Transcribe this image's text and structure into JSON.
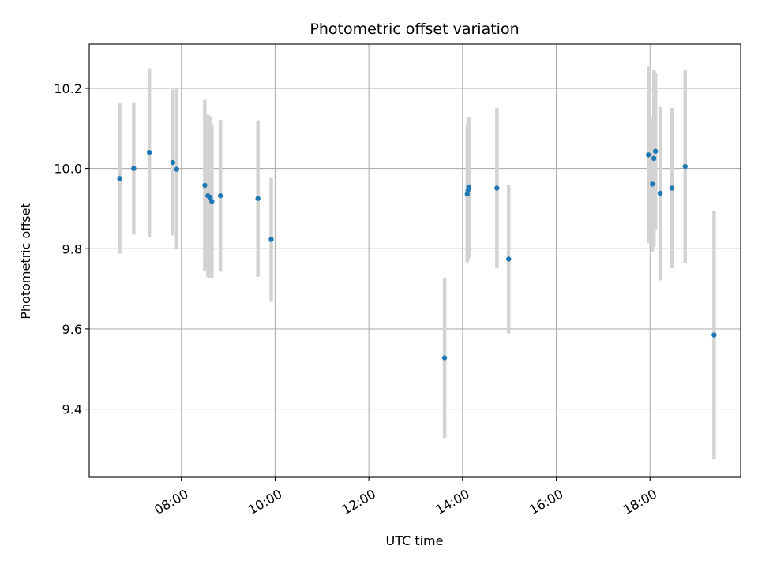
{
  "chart_data": {
    "type": "scatter",
    "title": "Photometric offset variation",
    "xlabel": "UTC time",
    "ylabel": "Photometric offset",
    "xlim": [
      "06:02",
      "19:56"
    ],
    "ylim": [
      9.23,
      10.31
    ],
    "x_ticks": [
      "08:00",
      "10:00",
      "12:00",
      "14:00",
      "16:00",
      "18:00"
    ],
    "y_ticks": [
      9.4,
      9.6,
      9.8,
      10.0,
      10.2
    ],
    "y_tick_labels": [
      "9.4",
      "9.6",
      "9.8",
      "10.0",
      "10.2"
    ],
    "grid": true,
    "colors": {
      "marker": "#1f77b4",
      "errorbar": "#d3d3d3",
      "grid": "#b0b0b0"
    },
    "series": [
      {
        "x": [
          "06:41",
          "06:59",
          "07:19",
          "07:49",
          "07:54",
          "08:30",
          "08:34",
          "08:37",
          "08:39",
          "08:50",
          "09:38",
          "09:55",
          "13:37",
          "14:06",
          "14:07",
          "14:08",
          "14:44",
          "14:59",
          "17:58",
          "18:03",
          "18:05",
          "18:07",
          "18:13",
          "18:28",
          "18:45",
          "19:22"
        ],
        "y": [
          9.975,
          10.0,
          10.04,
          10.015,
          9.998,
          9.958,
          9.932,
          9.928,
          9.918,
          9.932,
          9.925,
          9.823,
          9.528,
          9.936,
          9.946,
          9.954,
          9.951,
          9.774,
          10.034,
          9.961,
          10.025,
          10.043,
          9.938,
          9.951,
          10.005,
          9.585
        ],
        "yerr": [
          0.187,
          0.165,
          0.21,
          0.182,
          0.2,
          0.213,
          0.202,
          0.202,
          0.192,
          0.189,
          0.195,
          0.155,
          0.2,
          0.17,
          0.172,
          0.175,
          0.2,
          0.185,
          0.22,
          0.168,
          0.22,
          0.195,
          0.217,
          0.2,
          0.24,
          0.31
        ]
      }
    ]
  }
}
